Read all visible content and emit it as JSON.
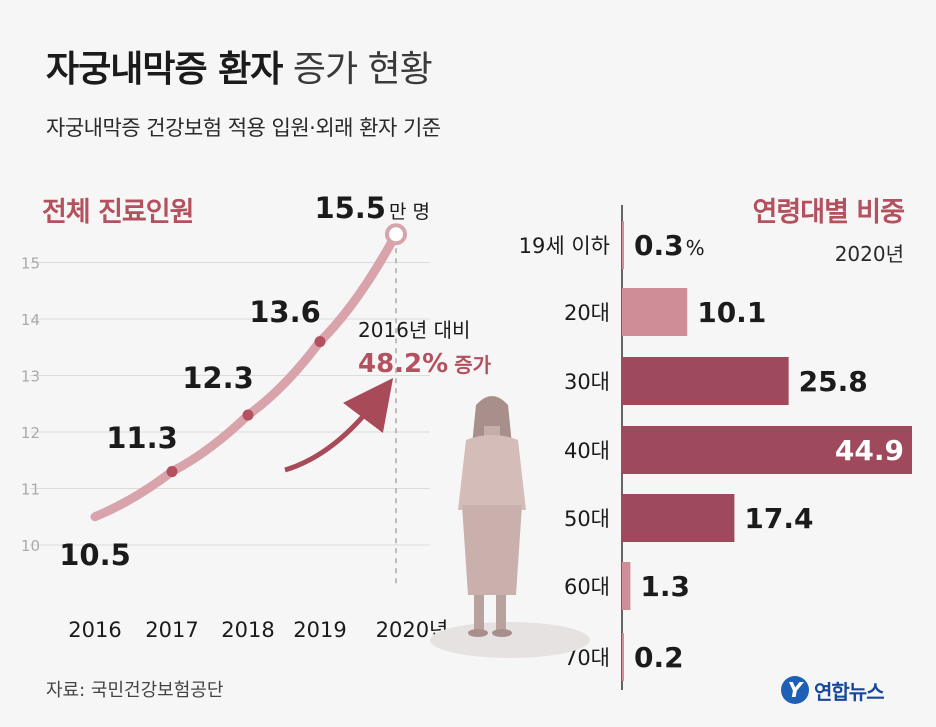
{
  "header": {
    "title_bold": "자궁내막증 환자",
    "title_light": "증가 현황",
    "subtitle": "자궁내막증 건강보험 적용 입원·외래 환자 기준"
  },
  "left_section": {
    "title": "전체 진료인원"
  },
  "right_section": {
    "title": "연령대별 비중",
    "year": "2020년"
  },
  "source": "자료: 국민건강보험공단",
  "logo": {
    "text": "연합뉴스",
    "mark": "Y"
  },
  "colors": {
    "accent": "#b3515f",
    "line": "#d9a3ab",
    "bar_dark": "#9e4a5c",
    "bar_light": "#cf8d98"
  },
  "chart_data": [
    {
      "type": "line",
      "title": "전체 진료인원",
      "x": [
        "2016",
        "2017",
        "2018",
        "2019",
        "2020년"
      ],
      "values": [
        10.5,
        11.3,
        12.3,
        13.6,
        15.5
      ],
      "value_labels": [
        "10.5",
        "11.3",
        "12.3",
        "13.6",
        "15.5"
      ],
      "last_label_unit": "만 명",
      "y_ticks": [
        "10",
        "11",
        "12",
        "13",
        "14",
        "15"
      ],
      "ylim": [
        10,
        15.5
      ],
      "grid": true,
      "annotation": {
        "line1": "2016년 대비",
        "line2_value": "48.2%",
        "line2_suffix": "증가"
      }
    },
    {
      "type": "bar",
      "orientation": "horizontal",
      "title": "연령대별 비중",
      "subtitle": "2020년",
      "categories": [
        "19세 이하",
        "20대",
        "30대",
        "40대",
        "50대",
        "60대",
        "70대"
      ],
      "values": [
        0.3,
        10.1,
        25.8,
        44.9,
        17.4,
        1.3,
        0.2
      ],
      "value_labels": [
        "0.3",
        "10.1",
        "25.8",
        "44.9",
        "17.4",
        "1.3",
        "0.2"
      ],
      "first_label_unit": "%",
      "xlim": [
        0,
        44.9
      ]
    }
  ]
}
